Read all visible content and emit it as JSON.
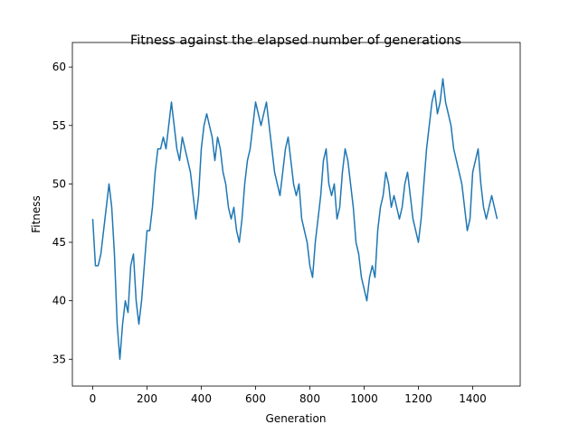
{
  "chart_data": {
    "type": "line",
    "title": "Fitness against the elapsed number of generations",
    "x_label": "Generation",
    "y_label": "Fitness",
    "x": [
      0,
      10,
      20,
      30,
      40,
      50,
      60,
      70,
      80,
      90,
      100,
      110,
      120,
      130,
      140,
      150,
      160,
      170,
      180,
      190,
      200,
      210,
      220,
      230,
      240,
      250,
      260,
      270,
      280,
      290,
      300,
      310,
      320,
      330,
      340,
      350,
      360,
      370,
      380,
      390,
      400,
      410,
      420,
      430,
      440,
      450,
      460,
      470,
      480,
      490,
      500,
      510,
      520,
      530,
      540,
      550,
      560,
      570,
      580,
      590,
      600,
      610,
      620,
      630,
      640,
      650,
      660,
      670,
      680,
      690,
      700,
      710,
      720,
      730,
      740,
      750,
      760,
      770,
      780,
      790,
      800,
      810,
      820,
      830,
      840,
      850,
      860,
      870,
      880,
      890,
      900,
      910,
      920,
      930,
      940,
      950,
      960,
      970,
      980,
      990,
      1000,
      1010,
      1020,
      1030,
      1040,
      1050,
      1060,
      1070,
      1080,
      1090,
      1100,
      1110,
      1120,
      1130,
      1140,
      1150,
      1160,
      1170,
      1180,
      1190,
      1200,
      1210,
      1220,
      1230,
      1240,
      1250,
      1260,
      1270,
      1280,
      1290,
      1300,
      1310,
      1320,
      1330,
      1340,
      1350,
      1360,
      1370,
      1380,
      1390,
      1400,
      1410,
      1420,
      1430,
      1440,
      1450,
      1460,
      1470,
      1480,
      1490
    ],
    "series": [
      {
        "name": "Fitness",
        "color": "#1f77b4",
        "values": [
          47,
          43,
          43,
          44,
          46,
          48,
          50,
          48,
          44,
          38,
          35,
          38,
          40,
          39,
          43,
          44,
          40,
          38,
          40,
          43,
          46,
          46,
          48,
          51,
          53,
          53,
          54,
          53,
          55,
          57,
          55,
          53,
          52,
          54,
          53,
          52,
          51,
          49,
          47,
          49,
          53,
          55,
          56,
          55,
          54,
          52,
          54,
          53,
          51,
          50,
          48,
          47,
          48,
          46,
          45,
          47,
          50,
          52,
          53,
          55,
          57,
          56,
          55,
          56,
          57,
          55,
          53,
          51,
          50,
          49,
          51,
          53,
          54,
          52,
          50,
          49,
          50,
          47,
          46,
          45,
          43,
          42,
          45,
          47,
          49,
          52,
          53,
          50,
          49,
          50,
          47,
          48,
          51,
          53,
          52,
          50,
          48,
          45,
          44,
          42,
          41,
          40,
          42,
          43,
          42,
          46,
          48,
          49,
          51,
          50,
          48,
          49,
          48,
          47,
          48,
          50,
          51,
          49,
          47,
          46,
          45,
          47,
          50,
          53,
          55,
          57,
          58,
          56,
          57,
          59,
          57,
          56,
          55,
          53,
          52,
          51,
          50,
          48,
          46,
          47,
          51,
          52,
          53,
          50,
          48,
          47,
          48,
          49,
          48,
          47
        ]
      }
    ],
    "xlim": [
      -75,
      1575
    ],
    "ylim": [
      32.7,
      62.1
    ],
    "xticks": [
      0,
      200,
      400,
      600,
      800,
      1000,
      1200,
      1400
    ],
    "yticks": [
      35,
      40,
      45,
      50,
      55,
      60
    ]
  }
}
